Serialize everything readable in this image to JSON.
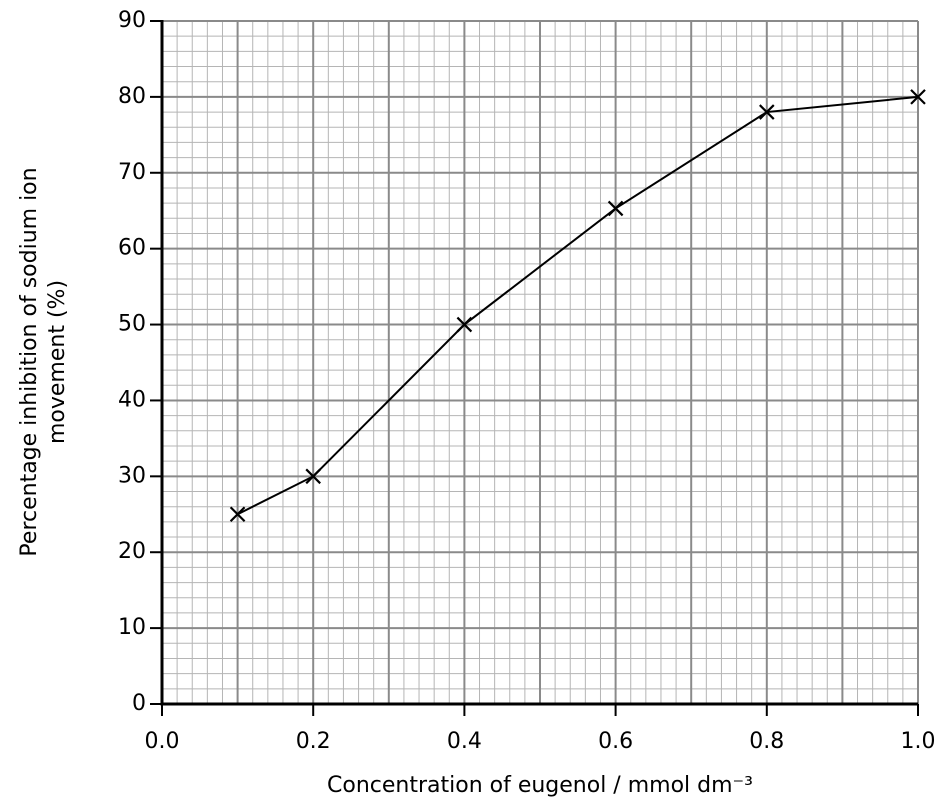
{
  "chart_data": {
    "type": "line",
    "xlabel": "Concentration of eugenol / mmol dm⁻³",
    "ylabel": [
      "Percentage inhibition of sodium ion",
      "movement (%)"
    ],
    "x": [
      0.1,
      0.2,
      0.4,
      0.6,
      0.8,
      1.0
    ],
    "series": [
      {
        "color": "#000000",
        "marker": "x",
        "values": [
          25,
          30,
          50,
          65.3,
          78,
          80
        ]
      }
    ],
    "xlim": [
      0,
      1.0
    ],
    "ylim": [
      0,
      90
    ],
    "xticks": [
      {
        "value": 0,
        "label": "0.0"
      },
      0.2,
      0.4,
      0.6,
      0.8,
      {
        "value": 1,
        "label": "1.0"
      }
    ],
    "yticks": [
      0,
      10,
      20,
      30,
      40,
      50,
      60,
      70,
      80,
      90
    ],
    "grid": {
      "x_major": 0.1,
      "x_minor": 0.02,
      "y_major": 10,
      "y_minor": 2
    }
  }
}
